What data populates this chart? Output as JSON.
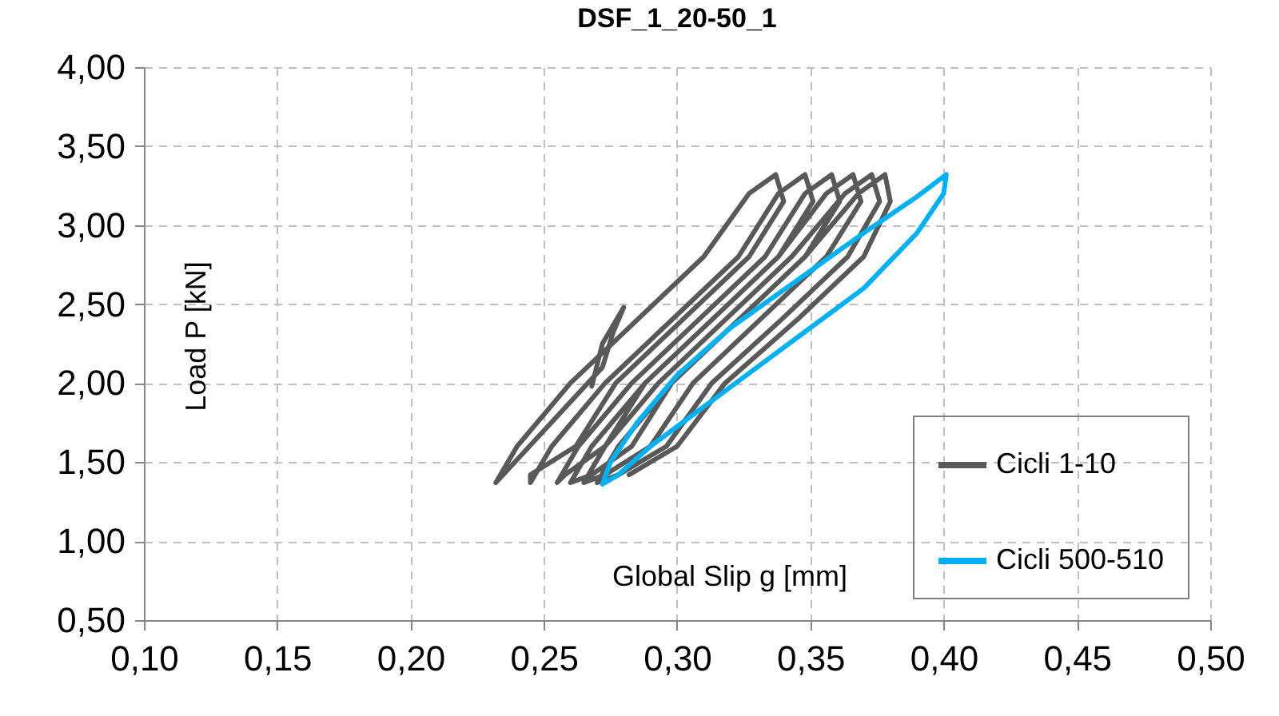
{
  "chart_data": {
    "type": "line",
    "title": "DSF_1_20-50_1",
    "xlabel": "Global  Slip g [mm]",
    "ylabel": "Load P [kN]",
    "xlim": [
      0.1,
      0.5
    ],
    "xticks": [
      {
        "value": 0.1,
        "label": "0,10"
      },
      {
        "value": 0.15,
        "label": "0,15"
      },
      {
        "value": 0.2,
        "label": "0,20"
      },
      {
        "value": 0.25,
        "label": "0,25"
      },
      {
        "value": 0.3,
        "label": "0,30"
      },
      {
        "value": 0.35,
        "label": "0,35"
      },
      {
        "value": 0.4,
        "label": "0,40"
      },
      {
        "value": 0.45,
        "label": "0,45"
      },
      {
        "value": 0.5,
        "label": "0,50"
      }
    ],
    "ylim": [
      0.5,
      4.0
    ],
    "yticks": [
      {
        "value": 0.5,
        "label": "0,50"
      },
      {
        "value": 1.0,
        "label": "1,00"
      },
      {
        "value": 1.5,
        "label": "1,50"
      },
      {
        "value": 2.0,
        "label": "2,00"
      },
      {
        "value": 2.5,
        "label": "2,50"
      },
      {
        "value": 3.0,
        "label": "3,00"
      },
      {
        "value": 3.5,
        "label": "3,50"
      },
      {
        "value": 4.0,
        "label": "4,00"
      }
    ],
    "grid": true,
    "legend": "bottom right",
    "line_style": "solid",
    "marker": "none",
    "series": [
      {
        "name": "Cicli 1-10",
        "color": "#595959",
        "x": [
          0.268,
          0.272,
          0.28,
          0.276,
          0.272,
          0.232,
          0.24,
          0.26,
          0.285,
          0.31,
          0.327,
          0.337,
          0.34,
          0.327,
          0.302,
          0.277,
          0.262,
          0.245,
          0.245,
          0.253,
          0.273,
          0.298,
          0.323,
          0.338,
          0.348,
          0.351,
          0.338,
          0.313,
          0.288,
          0.273,
          0.258,
          0.255,
          0.263,
          0.283,
          0.308,
          0.333,
          0.348,
          0.358,
          0.361,
          0.348,
          0.323,
          0.298,
          0.283,
          0.268,
          0.26,
          0.268,
          0.288,
          0.313,
          0.338,
          0.356,
          0.366,
          0.369,
          0.356,
          0.331,
          0.306,
          0.29,
          0.273,
          0.265,
          0.273,
          0.293,
          0.318,
          0.343,
          0.363,
          0.373,
          0.376,
          0.364,
          0.339,
          0.313,
          0.296,
          0.278,
          0.27,
          0.278,
          0.298,
          0.323,
          0.348,
          0.368,
          0.378,
          0.38,
          0.37,
          0.345,
          0.318,
          0.3,
          0.282
        ],
        "values": [
          1.98,
          2.25,
          2.48,
          2.32,
          2.1,
          1.37,
          1.6,
          2.0,
          2.4,
          2.8,
          3.2,
          3.32,
          3.15,
          2.8,
          2.4,
          2.0,
          1.6,
          1.42,
          1.37,
          1.6,
          2.0,
          2.4,
          2.8,
          3.2,
          3.32,
          3.15,
          2.8,
          2.4,
          2.0,
          1.6,
          1.42,
          1.37,
          1.6,
          2.0,
          2.4,
          2.8,
          3.2,
          3.32,
          3.15,
          2.8,
          2.4,
          2.0,
          1.6,
          1.42,
          1.37,
          1.6,
          2.0,
          2.4,
          2.8,
          3.2,
          3.32,
          3.15,
          2.8,
          2.4,
          2.0,
          1.6,
          1.42,
          1.37,
          1.6,
          2.0,
          2.4,
          2.8,
          3.2,
          3.32,
          3.15,
          2.8,
          2.4,
          2.0,
          1.6,
          1.42,
          1.37,
          1.6,
          2.0,
          2.4,
          2.8,
          3.2,
          3.32,
          3.15,
          2.8,
          2.4,
          2.0,
          1.6,
          1.42
        ]
      },
      {
        "name": "Cicli 500-510",
        "color": "#00b0f0",
        "x": [
          0.272,
          0.275,
          0.285,
          0.3,
          0.32,
          0.345,
          0.37,
          0.39,
          0.401,
          0.4,
          0.39,
          0.37,
          0.35,
          0.33,
          0.31,
          0.29,
          0.278,
          0.273
        ],
        "values": [
          1.36,
          1.5,
          1.75,
          2.05,
          2.35,
          2.65,
          2.95,
          3.18,
          3.32,
          3.2,
          2.95,
          2.6,
          2.35,
          2.1,
          1.85,
          1.6,
          1.42,
          1.37
        ]
      }
    ]
  }
}
